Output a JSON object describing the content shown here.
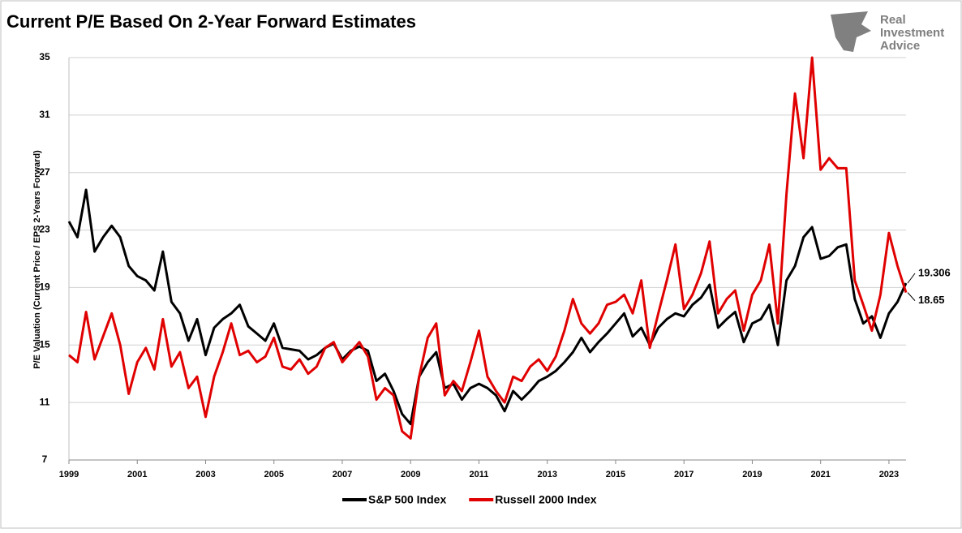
{
  "chart_data": {
    "type": "line",
    "title": "Current P/E Based On 2-Year Forward Estimates",
    "y_label": "P/E Valuation (Current Price / EPS 2-Years Forward)",
    "logo": [
      "Real",
      "Investment",
      "Advice"
    ],
    "xlim": [
      1999,
      2023.5
    ],
    "xticks": [
      1999,
      2001,
      2003,
      2005,
      2007,
      2009,
      2011,
      2013,
      2015,
      2017,
      2019,
      2021,
      2023
    ],
    "ylim": [
      7,
      35
    ],
    "yticks": [
      7,
      11,
      15,
      19,
      23,
      27,
      31,
      35
    ],
    "grid": true,
    "legend": "bottom",
    "x": [
      1999,
      1999.25,
      1999.5,
      1999.75,
      2000,
      2000.25,
      2000.5,
      2000.75,
      2001,
      2001.25,
      2001.5,
      2001.75,
      2002,
      2002.25,
      2002.5,
      2002.75,
      2003,
      2003.25,
      2003.5,
      2003.75,
      2004,
      2004.25,
      2004.5,
      2004.75,
      2005,
      2005.25,
      2005.5,
      2005.75,
      2006,
      2006.25,
      2006.5,
      2006.75,
      2007,
      2007.25,
      2007.5,
      2007.75,
      2008,
      2008.25,
      2008.5,
      2008.75,
      2009,
      2009.25,
      2009.5,
      2009.75,
      2010,
      2010.25,
      2010.5,
      2010.75,
      2011,
      2011.25,
      2011.5,
      2011.75,
      2012,
      2012.25,
      2012.5,
      2012.75,
      2013,
      2013.25,
      2013.5,
      2013.75,
      2014,
      2014.25,
      2014.5,
      2014.75,
      2015,
      2015.25,
      2015.5,
      2015.75,
      2016,
      2016.25,
      2016.5,
      2016.75,
      2017,
      2017.25,
      2017.5,
      2017.75,
      2018,
      2018.25,
      2018.5,
      2018.75,
      2019,
      2019.25,
      2019.5,
      2019.75,
      2020,
      2020.25,
      2020.5,
      2020.75,
      2021,
      2021.25,
      2021.5,
      2021.75,
      2022,
      2022.25,
      2022.5,
      2022.75,
      2023,
      2023.25,
      2023.5
    ],
    "series": [
      {
        "name": "S&P 500 Index",
        "color": "#000000",
        "end_label": "19.306",
        "values": [
          23.6,
          22.5,
          25.8,
          21.5,
          22.5,
          23.3,
          22.5,
          20.5,
          19.8,
          19.5,
          18.8,
          21.5,
          18,
          17.2,
          15.3,
          16.8,
          14.3,
          16.2,
          16.8,
          17.2,
          17.8,
          16.3,
          15.8,
          15.3,
          16.5,
          14.8,
          14.7,
          14.6,
          14.0,
          14.3,
          14.8,
          15.1,
          14.0,
          14.6,
          14.9,
          14.6,
          12.5,
          13.0,
          11.8,
          10.2,
          9.5,
          12.8,
          13.8,
          14.5,
          12.0,
          12.3,
          11.2,
          12.0,
          12.3,
          12.0,
          11.5,
          10.4,
          11.8,
          11.2,
          11.8,
          12.5,
          12.8,
          13.2,
          13.8,
          14.5,
          15.5,
          14.5,
          15.2,
          15.8,
          16.5,
          17.2,
          15.6,
          16.2,
          15.0,
          16.2,
          16.8,
          17.2,
          17.0,
          17.8,
          18.3,
          19.2,
          16.2,
          16.8,
          17.3,
          15.2,
          16.5,
          16.8,
          17.8,
          15.0,
          19.5,
          20.5,
          22.5,
          23.2,
          21.0,
          21.2,
          21.8,
          22.0,
          18.2,
          16.5,
          17.0,
          15.5,
          17.2,
          18.0,
          19.306
        ]
      },
      {
        "name": "Russell 2000 Index",
        "color": "#e00000",
        "end_label": "18.65",
        "values": [
          14.3,
          13.8,
          17.3,
          14.0,
          15.6,
          17.2,
          15.0,
          11.6,
          13.8,
          14.8,
          13.3,
          16.8,
          13.5,
          14.5,
          12.0,
          12.8,
          10.0,
          12.8,
          14.5,
          16.5,
          14.3,
          14.6,
          13.8,
          14.2,
          15.5,
          13.5,
          13.3,
          14.0,
          13.0,
          13.5,
          14.8,
          15.2,
          13.8,
          14.5,
          15.2,
          14.2,
          11.2,
          12.0,
          11.5,
          9.0,
          8.5,
          12.8,
          15.5,
          16.5,
          11.5,
          12.5,
          11.8,
          13.8,
          16.0,
          12.8,
          11.8,
          11.0,
          12.8,
          12.5,
          13.5,
          14.0,
          13.2,
          14.2,
          16.0,
          18.2,
          16.5,
          15.8,
          16.5,
          17.8,
          18.0,
          18.5,
          17.2,
          19.5,
          14.8,
          17.2,
          19.5,
          22.0,
          17.5,
          18.5,
          20.0,
          22.2,
          17.2,
          18.2,
          18.8,
          16.0,
          18.5,
          19.5,
          22.0,
          16.5,
          25.5,
          32.5,
          28.0,
          35.0,
          27.2,
          28.0,
          27.3,
          27.3,
          19.5,
          17.8,
          16.0,
          18.5,
          22.8,
          20.5,
          18.65
        ]
      }
    ]
  }
}
